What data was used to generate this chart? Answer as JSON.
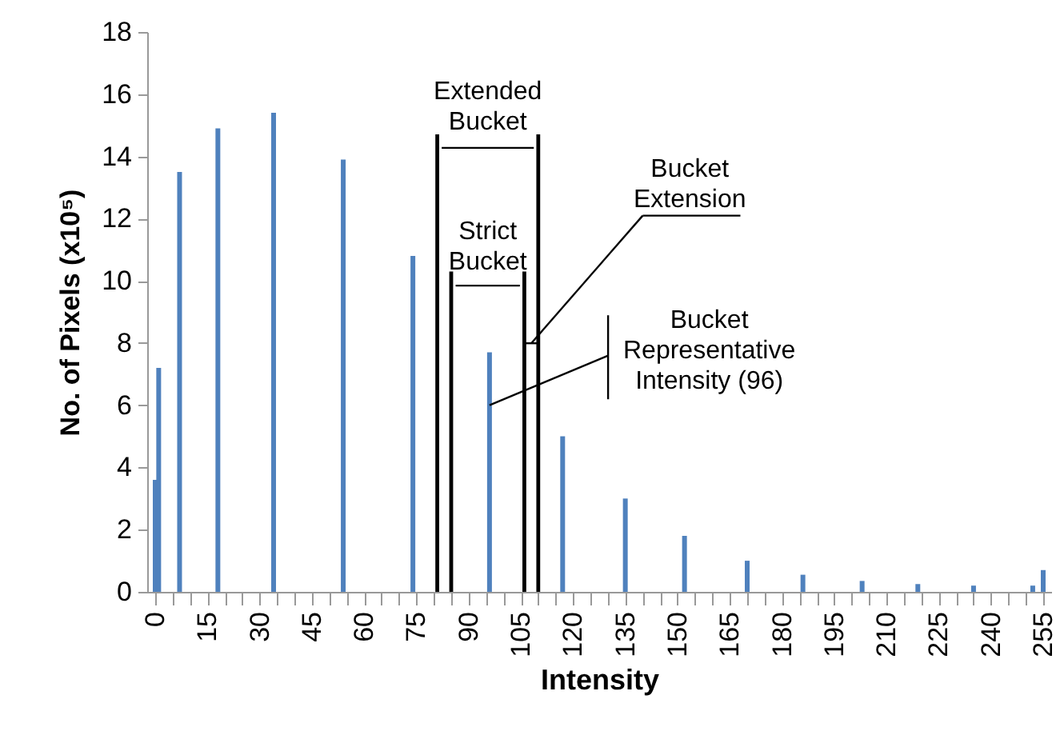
{
  "chart_data": {
    "type": "bar",
    "xlabel": "Intensity",
    "ylabel": "No. of Pixels (x10⁵)",
    "xlim": [
      0,
      255
    ],
    "ylim": [
      0,
      18
    ],
    "yticks": [
      0,
      2,
      4,
      6,
      8,
      10,
      12,
      14,
      16,
      18
    ],
    "xticks": [
      0,
      {
        "value": 5,
        "label": null
      },
      {
        "value": 10,
        "label": null
      },
      15,
      {
        "value": 20,
        "label": null
      },
      {
        "value": 25,
        "label": null
      },
      30,
      {
        "value": 35,
        "label": null
      },
      {
        "value": 40,
        "label": null
      },
      45,
      {
        "value": 50,
        "label": null
      },
      {
        "value": 55,
        "label": null
      },
      60,
      {
        "value": 65,
        "label": null
      },
      {
        "value": 70,
        "label": null
      },
      75,
      {
        "value": 80,
        "label": null
      },
      {
        "value": 85,
        "label": null
      },
      90,
      {
        "value": 95,
        "label": null
      },
      {
        "value": 100,
        "label": null
      },
      105,
      {
        "value": 110,
        "label": null
      },
      {
        "value": 115,
        "label": null
      },
      120,
      {
        "value": 125,
        "label": null
      },
      {
        "value": 130,
        "label": null
      },
      135,
      {
        "value": 140,
        "label": null
      },
      {
        "value": 145,
        "label": null
      },
      150,
      {
        "value": 155,
        "label": null
      },
      {
        "value": 160,
        "label": null
      },
      165,
      {
        "value": 170,
        "label": null
      },
      {
        "value": 175,
        "label": null
      },
      180,
      {
        "value": 185,
        "label": null
      },
      {
        "value": 190,
        "label": null
      },
      195,
      {
        "value": 200,
        "label": null
      },
      {
        "value": 205,
        "label": null
      },
      210,
      {
        "value": 215,
        "label": null
      },
      {
        "value": 220,
        "label": null
      },
      225,
      {
        "value": 230,
        "label": null
      },
      {
        "value": 235,
        "label": null
      },
      240,
      {
        "value": 245,
        "label": null
      },
      {
        "value": 250,
        "label": null
      },
      255
    ],
    "grid": false,
    "series": [
      {
        "color": "#4f81bd",
        "x": [
          0,
          1,
          7,
          18,
          34,
          54,
          74,
          96,
          117,
          135,
          152,
          170,
          186,
          203,
          219,
          235,
          252,
          255
        ],
        "values": [
          3.6,
          7.2,
          13.5,
          14.9,
          15.4,
          13.9,
          10.8,
          7.7,
          5.0,
          3.0,
          1.8,
          1.0,
          0.55,
          0.35,
          0.25,
          0.2,
          0.2,
          0.7
        ]
      }
    ],
    "ref_lines": [
      {
        "axis": "x",
        "value": 81,
        "color": "#000000"
      },
      {
        "axis": "x",
        "value": 85,
        "color": "#000000"
      },
      {
        "axis": "x",
        "value": 106,
        "color": "#000000"
      },
      {
        "axis": "x",
        "value": 110,
        "color": "#000000"
      }
    ],
    "annotations": [
      "Extended\nBucket",
      "Strict\nBucket",
      "Bucket\nExtension",
      {
        "text": "Bucket\nRepresentative\nIntensity (96)",
        "x": 96,
        "y": 6
      }
    ]
  }
}
